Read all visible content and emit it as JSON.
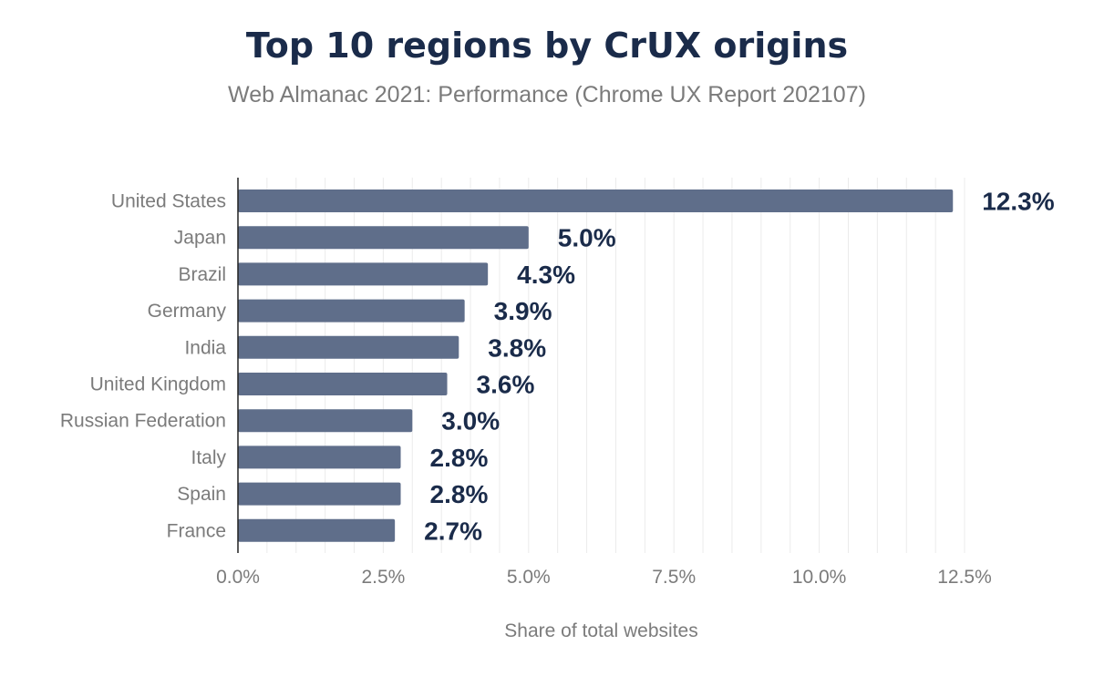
{
  "chart_data": {
    "type": "bar",
    "orientation": "horizontal",
    "title": "Top 10 regions by CrUX origins",
    "subtitle": "Web Almanac 2021: Performance (Chrome UX Report 202107)",
    "xlabel": "Share of total websites",
    "ylabel": "",
    "categories": [
      "United States",
      "Japan",
      "Brazil",
      "Germany",
      "India",
      "United Kingdom",
      "Russian Federation",
      "Italy",
      "Spain",
      "France"
    ],
    "values": [
      12.3,
      5.0,
      4.3,
      3.9,
      3.8,
      3.6,
      3.0,
      2.8,
      2.8,
      2.7
    ],
    "data_labels": [
      "12.3%",
      "5.0%",
      "4.3%",
      "3.9%",
      "3.8%",
      "3.6%",
      "3.0%",
      "2.8%",
      "2.8%",
      "2.7%"
    ],
    "xlim": [
      0,
      12.5
    ],
    "x_ticks": [
      0,
      2.5,
      5.0,
      7.5,
      10.0,
      12.5
    ],
    "x_tick_labels": [
      "0.0%",
      "2.5%",
      "5.0%",
      "7.5%",
      "10.0%",
      "12.5%"
    ],
    "grid": true,
    "legend": "none",
    "colors": {
      "bar": "#5f6e8a",
      "title": "#1a2b4a",
      "data_label": "#1a2b4a",
      "axis_text": "#7b7b7b",
      "grid": "#ebebeb",
      "axis_line": "#222222"
    }
  }
}
